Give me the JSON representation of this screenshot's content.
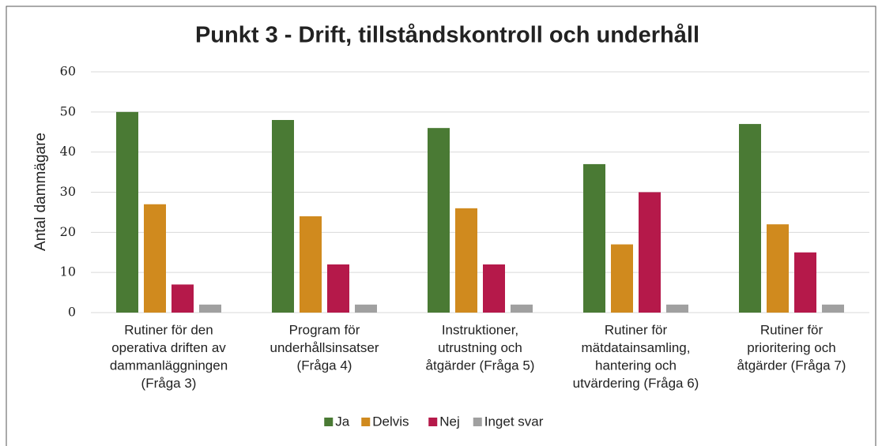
{
  "chart_data": {
    "type": "bar",
    "title": "Punkt 3 - Drift, tillståndskontroll och underhåll",
    "y_label": "Antal dammägare",
    "categories": [
      [
        "Rutiner för den",
        "operativa driften av",
        "dammanläggningen",
        "(Fråga 3)"
      ],
      [
        "Program för",
        "underhållsinsatser",
        "(Fråga 4)"
      ],
      [
        "Instruktioner,",
        "utrustning och",
        "åtgärder (Fråga 5)"
      ],
      [
        "Rutiner för",
        "mätdatainsamling,",
        "hantering och",
        "utvärdering (Fråga 6)"
      ],
      [
        "Rutiner för",
        "prioritering och",
        "åtgärder (Fråga 7)"
      ]
    ],
    "series": [
      {
        "name": "Ja",
        "color": "#4a7a34",
        "values": [
          50,
          48,
          46,
          37,
          47
        ]
      },
      {
        "name": "Delvis",
        "color": "#d08a1e",
        "values": [
          27,
          24,
          26,
          17,
          22
        ]
      },
      {
        "name": "Nej",
        "color": "#b5194a",
        "values": [
          7,
          12,
          12,
          30,
          15
        ]
      },
      {
        "name": "Inget svar",
        "color": "#a0a0a0",
        "values": [
          2,
          2,
          2,
          2,
          2
        ]
      }
    ],
    "ylim": [
      0,
      60
    ],
    "yticks": [
      0,
      10,
      20,
      30,
      40,
      50,
      60
    ],
    "grid": true,
    "legend": "bottom"
  }
}
